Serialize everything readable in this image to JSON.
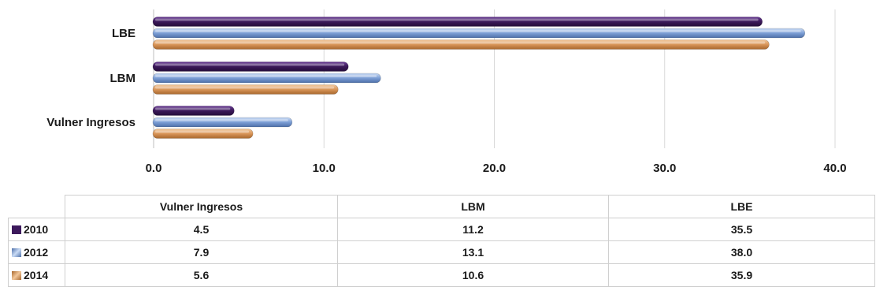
{
  "chart_data": {
    "type": "bar",
    "orientation": "horizontal",
    "categories": [
      "LBE",
      "LBM",
      "Vulner Ingresos"
    ],
    "series": [
      {
        "name": "2010",
        "color": "#3d1a5c",
        "values": [
          35.5,
          11.2,
          4.5
        ]
      },
      {
        "name": "2012",
        "color": "#7d9fd6",
        "values": [
          38.0,
          13.1,
          7.9
        ]
      },
      {
        "name": "2014",
        "color": "#d9965a",
        "values": [
          35.9,
          10.6,
          5.6
        ]
      }
    ],
    "x_ticks": [
      "0.0",
      "10.0",
      "20.0",
      "30.0",
      "40.0"
    ],
    "xlim": [
      0,
      40
    ],
    "grid": true,
    "legend": "data table below chart"
  },
  "table": {
    "columns": [
      "Vulner Ingresos",
      "LBM",
      "LBE"
    ],
    "rows": [
      {
        "label": "2010",
        "color": "#3d1a5c",
        "cells": [
          "4.5",
          "11.2",
          "35.5"
        ]
      },
      {
        "label": "2012",
        "color": "#7d9fd6",
        "cells": [
          "7.9",
          "13.1",
          "38.0"
        ]
      },
      {
        "label": "2014",
        "color": "#d9965a",
        "cells": [
          "5.6",
          "10.6",
          "35.9"
        ]
      }
    ]
  }
}
